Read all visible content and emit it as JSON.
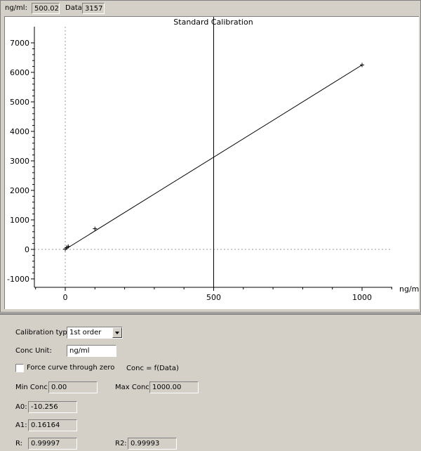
{
  "readout": {
    "x_label": "ng/ml:",
    "x_value": "500.02",
    "y_label": "Data:",
    "y_value": "3157"
  },
  "chart_data": {
    "type": "line",
    "title": "Standard Calibration",
    "xlabel": "ng/ml",
    "ylabel": "",
    "xlim": [
      -100,
      1100
    ],
    "ylim": [
      -1200,
      7500
    ],
    "x_ticks": [
      0,
      500,
      1000
    ],
    "y_ticks": [
      -1000,
      0,
      1000,
      2000,
      3000,
      4000,
      5000,
      6000,
      7000
    ],
    "grid": false,
    "cursor_x": 500.02,
    "series": [
      {
        "points": [
          {
            "x": 0,
            "y": 10
          },
          {
            "x": 5,
            "y": 60
          },
          {
            "x": 10,
            "y": 100
          },
          {
            "x": 100,
            "y": 700
          },
          {
            "x": 1000,
            "y": 6250
          }
        ],
        "fit_line": [
          {
            "x": 0,
            "y": 0
          },
          {
            "x": 1000,
            "y": 6250
          }
        ]
      }
    ],
    "colors": {
      "line": "#000000",
      "zero_line": "#9a9a9a"
    }
  },
  "settings": {
    "calibration_type_label": "Calibration type:",
    "calibration_type_value": "1st order",
    "conc_unit_label": "Conc Unit:",
    "conc_unit_value": "ng/ml",
    "force_zero_label": "Force curve through zero",
    "force_zero_checked": false,
    "equation_text": "Conc = f(Data)",
    "min_conc_label": "Min Conc:",
    "min_conc_value": "0.00",
    "max_conc_label": "Max Conc:",
    "max_conc_value": "1000.00",
    "a0_label": "A0:",
    "a0_value": "-10.256",
    "a1_label": "A1:",
    "a1_value": "0.16164",
    "r_label": "R:",
    "r_value": "0.99997",
    "r2_label": "R2:",
    "r2_value": "0.99993"
  }
}
